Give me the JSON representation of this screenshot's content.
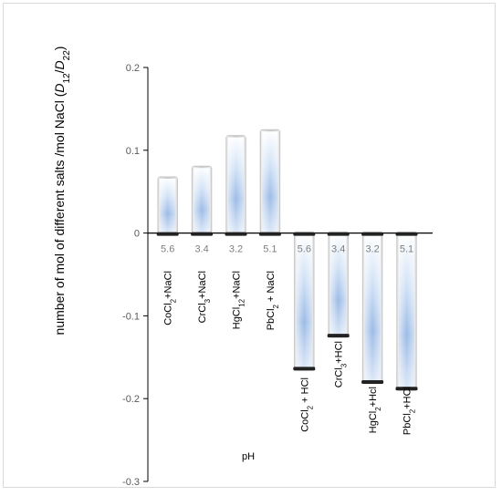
{
  "chart_data": {
    "type": "bar",
    "categories": [
      "CoCl2+NaCl",
      "CrCl3+NaCl",
      "HgCl2+NaCl",
      "PbCl2 + NaCl",
      "CoCl2 + HCl",
      "CrCl3+HCl",
      "HgCl2+Hcl",
      "PbCl2+HCl"
    ],
    "category_labels": [
      [
        {
          "t": "CoCl"
        },
        {
          "t": "2",
          "sub": true
        },
        {
          "t": "+NaCl"
        }
      ],
      [
        {
          "t": "CrCl"
        },
        {
          "t": "3",
          "sub": true
        },
        {
          "t": "+NaCl"
        }
      ],
      [
        {
          "t": "HgC"
        },
        {
          "t": "l",
          "sub": false
        },
        {
          "t": "12",
          "sub": true
        },
        {
          "t": "+NaCl"
        }
      ],
      [
        {
          "t": "PbCl"
        },
        {
          "t": "2",
          "sub": true
        },
        {
          "t": " + NaCl"
        }
      ],
      [
        {
          "t": "CoCl"
        },
        {
          "t": "2",
          "sub": true
        },
        {
          "t": " + HCl"
        }
      ],
      [
        {
          "t": "CrCl"
        },
        {
          "t": "3",
          "sub": true
        },
        {
          "t": "+HCl"
        }
      ],
      [
        {
          "t": "HgCl"
        },
        {
          "t": "2",
          "sub": true
        },
        {
          "t": "+Hcl"
        }
      ],
      [
        {
          "t": "PbCl"
        },
        {
          "t": "2",
          "sub": true
        },
        {
          "t": "+HCl"
        }
      ]
    ],
    "ph_labels": [
      "5.6",
      "3.4",
      "3.2",
      "5.1",
      "5.6",
      "3.4",
      "3.2",
      "5.1"
    ],
    "values": [
      0.067,
      0.08,
      0.117,
      0.124,
      -0.165,
      -0.125,
      -0.181,
      -0.189
    ],
    "ylim": [
      -0.3,
      0.2
    ],
    "yticks": [
      0.2,
      0.1,
      0,
      -0.1,
      -0.2,
      -0.3
    ],
    "ytick_labels": [
      "0.2",
      "0.1",
      "0",
      "-0.1",
      "-0.2",
      "-0.3"
    ],
    "ylabel_parts": [
      {
        "t": "number of mol of different salts /mol NaCl ("
      },
      {
        "t": "D",
        "italic": true
      },
      {
        "t": "12",
        "sub": true
      },
      {
        "t": "/"
      },
      {
        "t": "D",
        "italic": true
      },
      {
        "t": "22",
        "sub": true
      },
      {
        "t": ")"
      }
    ],
    "xlabel": "pH",
    "bar_color": "#a9c4e8",
    "bar_edge": "#c8c8c8",
    "grid": false
  }
}
